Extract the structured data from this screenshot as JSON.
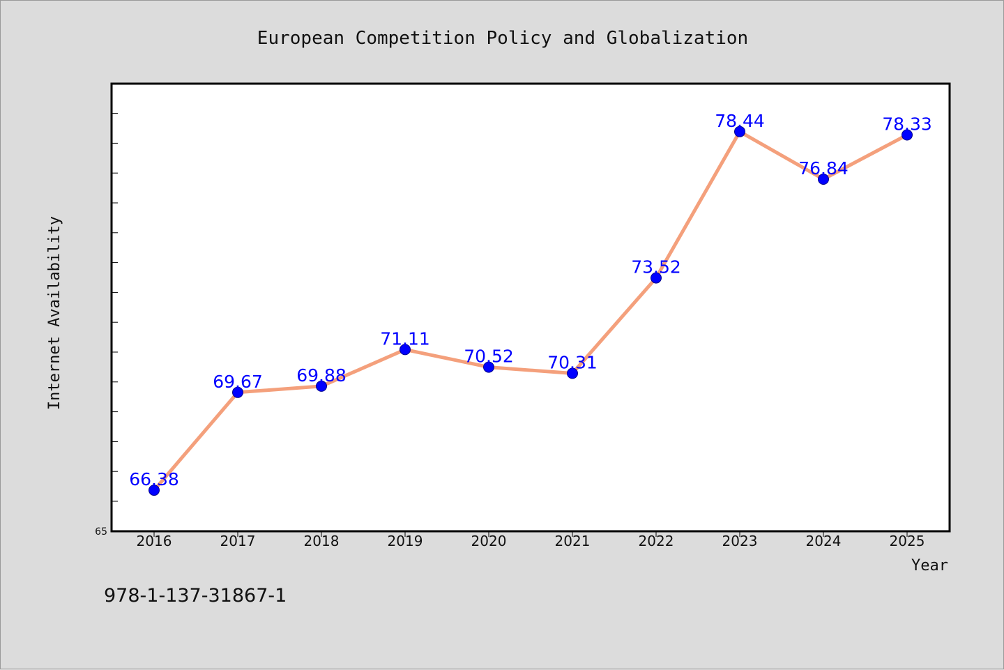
{
  "chart_data": {
    "type": "line",
    "title": "European Competition Policy and Globalization",
    "xlabel": "Year",
    "ylabel": "Internet Availability",
    "categories": [
      "2016",
      "2017",
      "2018",
      "2019",
      "2020",
      "2021",
      "2022",
      "2023",
      "2024",
      "2025"
    ],
    "series": [
      {
        "values": [
          66.38,
          69.67,
          69.88,
          71.11,
          70.52,
          70.31,
          73.52,
          78.44,
          76.84,
          78.33
        ],
        "line_color": "#f4a07c",
        "marker_color": "#0000ff",
        "labels": [
          "66.38",
          "69.67",
          "69.88",
          "71.11",
          "70.52",
          "70.31",
          "73.52",
          "78.44",
          "76.84",
          "78.33"
        ]
      }
    ],
    "ylim": [
      65,
      80
    ],
    "y_min_label": "65",
    "grid": false,
    "legend": "none"
  },
  "footer": {
    "isbn": "978-1-137-31867-1"
  },
  "colors": {
    "background": "#dcdcdc",
    "plot_background": "#ffffff",
    "axis": "#000000"
  }
}
